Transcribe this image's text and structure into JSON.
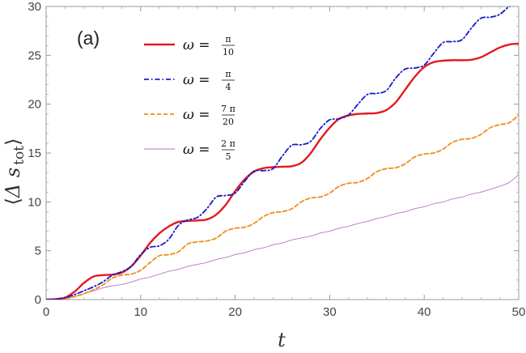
{
  "chart_data": {
    "type": "line",
    "panel_label": "(a)",
    "xlabel": "t",
    "ylabel": "⟨Δ s tot⟩",
    "ylabel_parts": {
      "main": "Δ s",
      "sub": "tot"
    },
    "xlim": [
      0,
      50
    ],
    "ylim": [
      0,
      30
    ],
    "x_ticks": [
      0,
      10,
      20,
      30,
      40,
      50
    ],
    "y_ticks": [
      0,
      5,
      10,
      15,
      20,
      25,
      30
    ],
    "grid": false,
    "legend_position": "top-left",
    "series": [
      {
        "name": "ω = π/10",
        "legend": {
          "lhs": "ω =",
          "num": "π",
          "den": "10"
        },
        "color": "#e31a1c",
        "style": "solid",
        "x": [
          0,
          1,
          2,
          3,
          4,
          5,
          6,
          7,
          8,
          9,
          10,
          11,
          12,
          13,
          14,
          15,
          16,
          17,
          18,
          19,
          20,
          21,
          22,
          23,
          24,
          25,
          26,
          27,
          28,
          29,
          30,
          31,
          32,
          33,
          34,
          35,
          36,
          37,
          38,
          39,
          40,
          41,
          42,
          43,
          44,
          45,
          46,
          47,
          48,
          49,
          50
        ],
        "y": [
          0,
          0.05,
          0.2,
          0.8,
          1.7,
          2.35,
          2.5,
          2.55,
          2.75,
          3.4,
          4.5,
          5.8,
          6.8,
          7.5,
          7.95,
          8.05,
          8.1,
          8.2,
          8.7,
          9.7,
          11.1,
          12.3,
          13.1,
          13.45,
          13.55,
          13.6,
          13.65,
          14.0,
          15.0,
          16.4,
          17.6,
          18.5,
          18.85,
          19.0,
          19.05,
          19.1,
          19.4,
          20.2,
          21.5,
          22.8,
          23.8,
          24.3,
          24.45,
          24.5,
          24.5,
          24.55,
          24.8,
          25.3,
          25.8,
          26.1,
          26.2
        ]
      },
      {
        "name": "ω = π/4",
        "legend": {
          "lhs": "ω =",
          "num": "π",
          "den": "4"
        },
        "color": "#1a1acc",
        "style": "dashdot",
        "x": [
          0,
          1,
          2,
          3,
          4,
          5,
          6,
          7,
          8,
          9,
          10,
          11,
          12,
          13,
          14,
          15,
          16,
          17,
          18,
          19,
          20,
          21,
          22,
          23,
          24,
          25,
          26,
          27,
          28,
          29,
          30,
          31,
          32,
          33,
          34,
          35,
          36,
          37,
          38,
          39,
          40,
          41,
          42,
          43,
          44,
          45,
          46,
          47,
          48,
          49,
          50
        ],
        "y": [
          0,
          0.05,
          0.2,
          0.5,
          0.9,
          1.3,
          1.8,
          2.5,
          2.85,
          3.4,
          4.6,
          5.35,
          5.5,
          6.2,
          7.6,
          8.15,
          8.4,
          9.3,
          10.5,
          10.65,
          10.9,
          12.1,
          13.15,
          13.2,
          13.4,
          14.7,
          15.8,
          15.85,
          16.2,
          17.5,
          18.4,
          18.5,
          18.9,
          20.0,
          21.0,
          21.1,
          21.4,
          22.7,
          23.6,
          23.7,
          24.0,
          25.2,
          26.3,
          26.4,
          26.6,
          27.8,
          28.8,
          28.9,
          29.2,
          30.0,
          30.4
        ]
      },
      {
        "name": "ω = 7π/20",
        "legend": {
          "lhs": "ω =",
          "num": "7 π",
          "den": "20"
        },
        "color": "#f28c1a",
        "style": "dashed",
        "x": [
          0,
          1,
          2,
          3,
          4,
          5,
          6,
          7,
          8,
          9,
          10,
          11,
          12,
          13,
          14,
          15,
          16,
          17,
          18,
          19,
          20,
          21,
          22,
          23,
          24,
          25,
          26,
          27,
          28,
          29,
          30,
          31,
          32,
          33,
          34,
          35,
          36,
          37,
          38,
          39,
          40,
          41,
          42,
          43,
          44,
          45,
          46,
          47,
          48,
          49,
          50
        ],
        "y": [
          0,
          0.03,
          0.1,
          0.3,
          0.6,
          1.0,
          1.5,
          2.2,
          2.5,
          2.6,
          3.0,
          3.8,
          4.5,
          4.6,
          4.9,
          5.7,
          5.9,
          6.0,
          6.3,
          7.0,
          7.3,
          7.4,
          7.8,
          8.5,
          8.9,
          9.0,
          9.3,
          10.0,
          10.4,
          10.5,
          10.9,
          11.6,
          11.9,
          12.0,
          12.4,
          13.1,
          13.4,
          13.5,
          13.9,
          14.6,
          14.9,
          15.0,
          15.4,
          16.1,
          16.4,
          16.5,
          16.9,
          17.6,
          17.9,
          18.1,
          18.9
        ]
      },
      {
        "name": "ω = 2π/5",
        "legend": {
          "lhs": "ω =",
          "num": "2 π",
          "den": "5"
        },
        "color": "#b873c9",
        "style": "thin",
        "x": [
          0,
          1,
          2,
          3,
          4,
          5,
          6,
          7,
          8,
          9,
          10,
          11,
          12,
          13,
          14,
          15,
          16,
          17,
          18,
          19,
          20,
          21,
          22,
          23,
          24,
          25,
          26,
          27,
          28,
          29,
          30,
          31,
          32,
          33,
          34,
          35,
          36,
          37,
          38,
          39,
          40,
          41,
          42,
          43,
          44,
          45,
          46,
          47,
          48,
          49,
          50
        ],
        "y": [
          0,
          0.02,
          0.1,
          0.3,
          0.6,
          0.9,
          1.2,
          1.4,
          1.55,
          1.8,
          2.1,
          2.3,
          2.6,
          2.9,
          3.1,
          3.4,
          3.6,
          3.8,
          4.1,
          4.3,
          4.6,
          4.8,
          5.1,
          5.3,
          5.6,
          5.8,
          6.1,
          6.3,
          6.5,
          6.8,
          7.0,
          7.3,
          7.5,
          7.8,
          8.0,
          8.3,
          8.5,
          8.8,
          9.0,
          9.3,
          9.5,
          9.8,
          10.0,
          10.3,
          10.5,
          10.8,
          11.0,
          11.3,
          11.6,
          12.0,
          12.8
        ]
      }
    ]
  }
}
